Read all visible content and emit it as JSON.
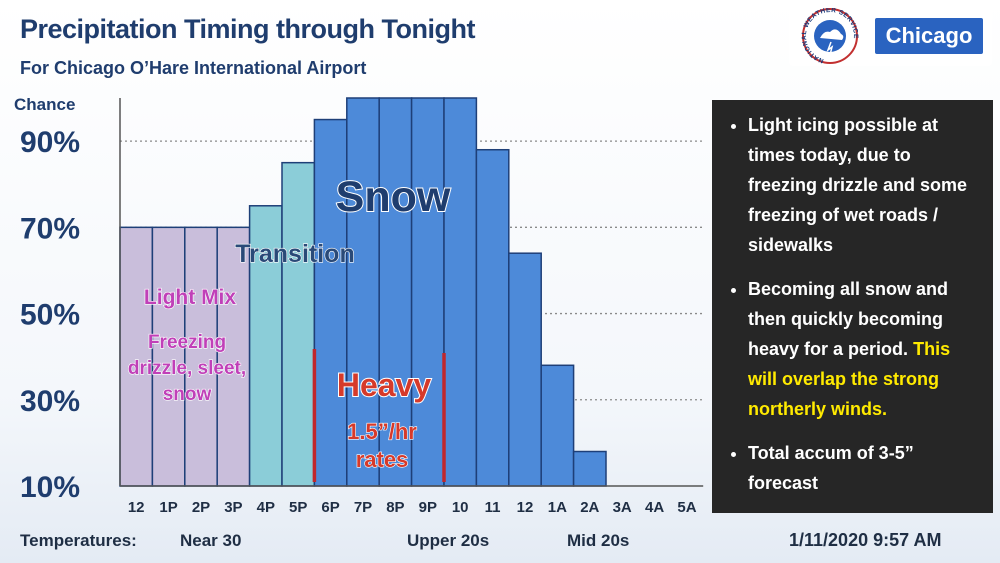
{
  "header": {
    "title": "Precipitation Timing through Tonight",
    "subtitle": "For Chicago O’Hare International Airport"
  },
  "badge": {
    "label": "Chicago",
    "logo_text": "NATIONAL WEATHER SERVICE"
  },
  "colors": {
    "light_mix": "#c9bedb",
    "transition": "#8bcdd8",
    "snow": "#4d8ad9",
    "heavy_marker": "#c0272d",
    "title": "#1f3d6e",
    "panel": "#262626",
    "highlight": "#ffea00"
  },
  "chart_data": {
    "type": "bar",
    "ylabel": "Chance",
    "y_ticks": [
      "10%",
      "30%",
      "50%",
      "70%",
      "90%"
    ],
    "y_tick_values": [
      10,
      30,
      50,
      70,
      90
    ],
    "ylim": [
      10,
      100
    ],
    "categories": [
      "12",
      "1P",
      "2P",
      "3P",
      "4P",
      "5P",
      "6P",
      "7P",
      "8P",
      "9P",
      "10",
      "11",
      "12",
      "1A",
      "2A",
      "3A",
      "4A",
      "5A"
    ],
    "values": [
      70,
      70,
      70,
      70,
      75,
      85,
      95,
      100,
      100,
      100,
      100,
      88,
      64,
      38,
      18,
      10,
      10,
      10
    ],
    "phases": [
      "light_mix",
      "light_mix",
      "light_mix",
      "light_mix",
      "transition",
      "transition",
      "snow",
      "snow",
      "snow",
      "snow",
      "snow",
      "snow",
      "snow",
      "snow",
      "snow",
      "snow",
      "snow",
      "snow"
    ],
    "grid": "dotted horizontal",
    "annotations": {
      "light_mix": "Light Mix",
      "light_mix_detail": [
        "Freezing",
        "drizzle, sleet,",
        "snow"
      ],
      "transition": "Transition",
      "snow": "Snow",
      "heavy": "Heavy",
      "heavy_rate": [
        "1.5”/hr",
        "rates"
      ]
    }
  },
  "bullets": [
    {
      "text": "Light icing possible at times today, due to freezing drizzle and some freezing of wet roads / sidewalks",
      "highlight": ""
    },
    {
      "text": "Becoming all snow and then quickly becoming heavy for a period.",
      "highlight": "This will overlap the strong northerly winds."
    },
    {
      "text": "Total accum of 3-5” forecast",
      "highlight": ""
    }
  ],
  "footer": {
    "label": "Temperatures:",
    "near": "Near 30",
    "upper": "Upper 20s",
    "mid": "Mid 20s",
    "timestamp": "1/11/2020 9:57 AM"
  }
}
